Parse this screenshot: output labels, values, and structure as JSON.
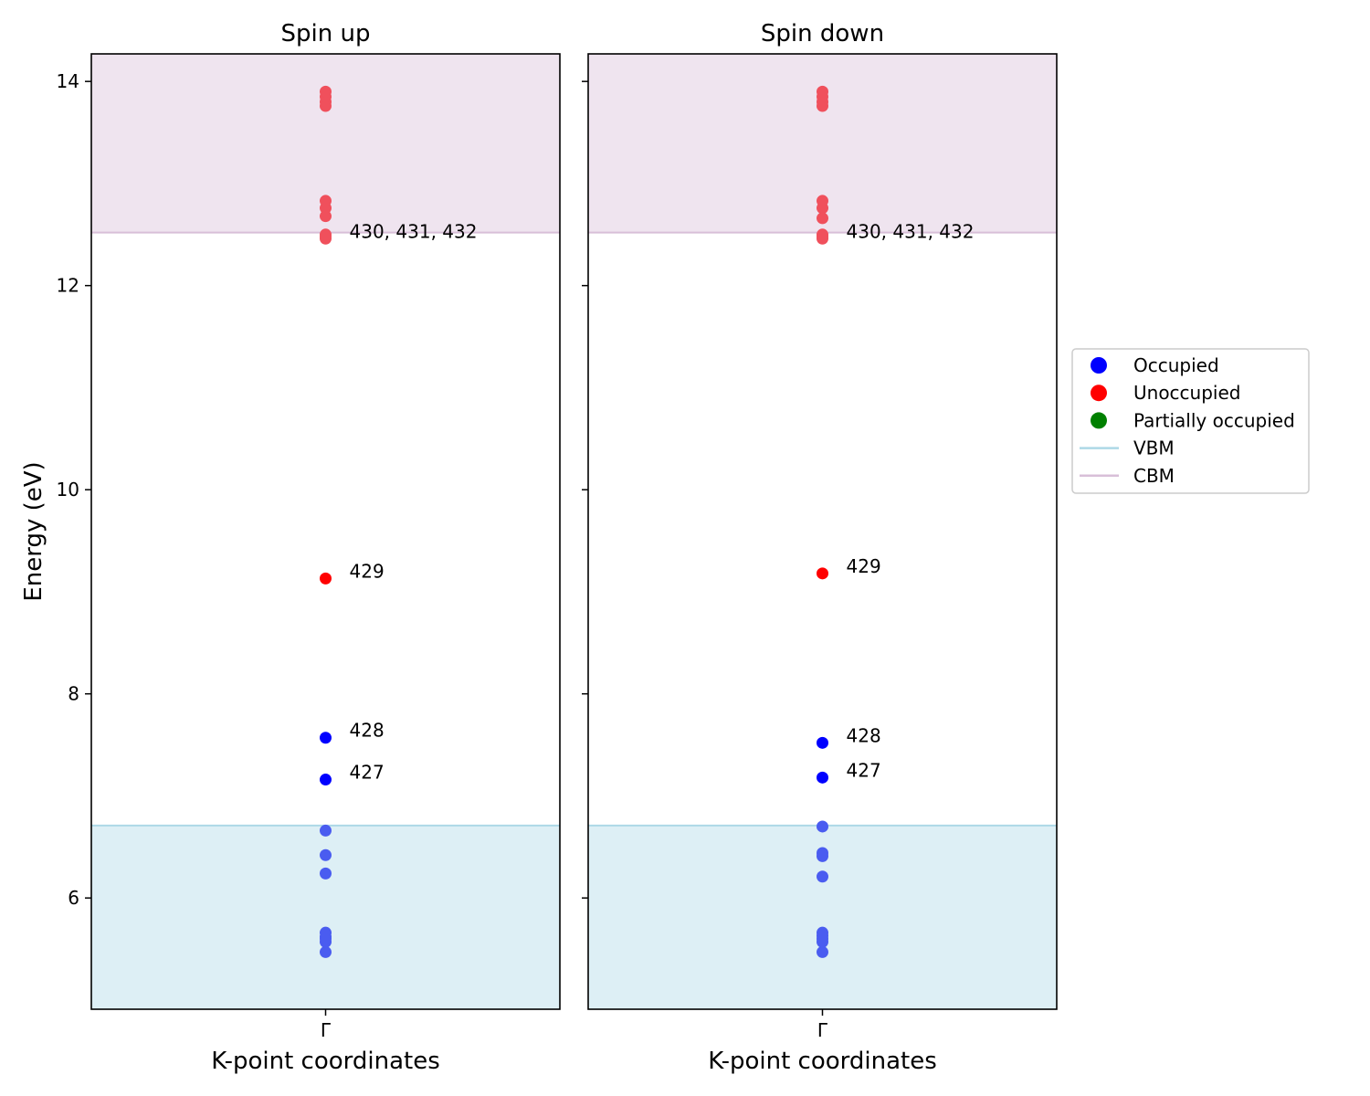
{
  "chart_data": {
    "type": "scatter",
    "ylabel": "Energy (eV)",
    "xlabel": "K-point coordinates",
    "ylim": [
      4.91,
      14.27
    ],
    "y_ticks": [
      6,
      8,
      10,
      12,
      14
    ],
    "x_tick_label": "Γ",
    "vbm": 6.71,
    "cbm": 12.52,
    "colors": {
      "occupied": "#0000ff",
      "unoccupied": "#ff0000",
      "partially_occupied": "#008000",
      "vbm_band": "#add8e6",
      "cbm_band": "#d8bfd8",
      "occupied_in_band": "#4a5cf0",
      "unoccupied_in_band": "#f0505c"
    },
    "legend": {
      "position": "right-center",
      "entries": [
        {
          "label": "Occupied",
          "kind": "marker",
          "color": "#0000ff"
        },
        {
          "label": "Unoccupied",
          "kind": "marker",
          "color": "#ff0000"
        },
        {
          "label": "Partially occupied",
          "kind": "marker",
          "color": "#008000"
        },
        {
          "label": "VBM",
          "kind": "line",
          "color": "#add8e6"
        },
        {
          "label": "CBM",
          "kind": "line",
          "color": "#d8bfd8"
        }
      ]
    },
    "panels": [
      {
        "title": "Spin up",
        "show_ylabel": true,
        "occupied": [
          5.47,
          5.57,
          5.6,
          5.62,
          5.66,
          6.24,
          6.42,
          6.66,
          7.16,
          7.57
        ],
        "unoccupied": [
          9.13,
          12.46,
          12.48,
          12.5,
          12.68,
          12.76,
          12.83,
          13.76,
          13.8,
          13.85,
          13.9
        ],
        "annotations": [
          {
            "text": "427",
            "y": 7.16
          },
          {
            "text": "428",
            "y": 7.57
          },
          {
            "text": "429",
            "y": 9.13
          },
          {
            "text": "430, 431, 432",
            "y": 12.46
          }
        ]
      },
      {
        "title": "Spin down",
        "show_ylabel": false,
        "occupied": [
          5.47,
          5.57,
          5.6,
          5.63,
          5.66,
          6.21,
          6.41,
          6.44,
          6.7,
          7.18,
          7.52
        ],
        "unoccupied": [
          9.18,
          12.46,
          12.48,
          12.5,
          12.66,
          12.76,
          12.83,
          13.76,
          13.8,
          13.85,
          13.9
        ],
        "annotations": [
          {
            "text": "427",
            "y": 7.18
          },
          {
            "text": "428",
            "y": 7.52
          },
          {
            "text": "429",
            "y": 9.18
          },
          {
            "text": "430, 431, 432",
            "y": 12.46
          }
        ]
      }
    ]
  }
}
